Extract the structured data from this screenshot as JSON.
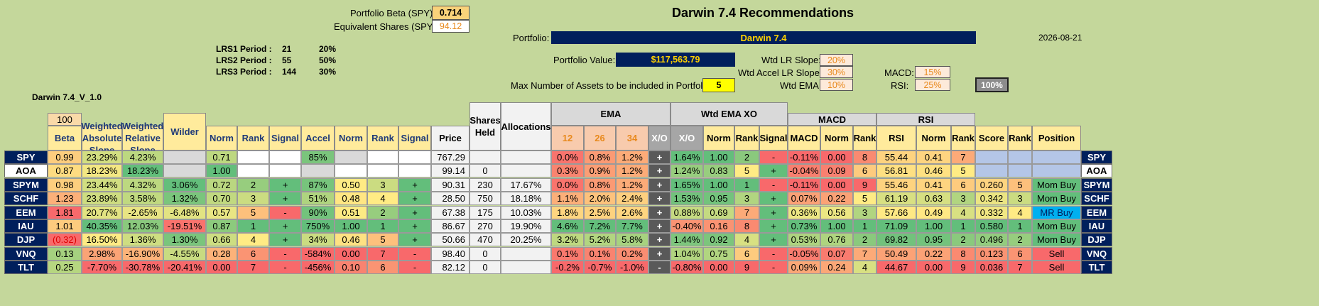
{
  "header": {
    "beta_label": "Portfolio Beta (SPY):",
    "beta_value": "0.714",
    "equiv_label": "Equivalent Shares (SPY):",
    "equiv_value": "94.12",
    "title": "Darwin 7.4 Recommendations",
    "portfolio_label": "Portfolio:",
    "portfolio_name": "Darwin 7.4",
    "date": "2026-08-21",
    "value_label": "Portfolio Value:",
    "value": "$117,563.79",
    "max_label": "Max Number of Assets to be included in Portfolio:",
    "max_value": "5",
    "version": "Darwin 7.4_V_1.0"
  },
  "periods": [
    {
      "label": "LRS1 Period :",
      "n": "21",
      "pct": "20%"
    },
    {
      "label": "LRS2 Period :",
      "n": "55",
      "pct": "50%"
    },
    {
      "label": "LRS3 Period :",
      "n": "144",
      "pct": "30%"
    }
  ],
  "weights": {
    "lr_label": "Wtd LR Slope:",
    "lr": "20%",
    "accel_label": "Wtd Accel LR Slope:",
    "accel": "30%",
    "ema_label": "Wtd EMA:",
    "ema": "10%",
    "macd_label": "MACD:",
    "macd": "15%",
    "rsi_label": "RSI:",
    "rsi": "25%",
    "total": "100%"
  },
  "groups": {
    "ema": "EMA",
    "wtd": "Wtd EMA XO",
    "macd": "MACD",
    "rsi": "RSI",
    "hundred": "100"
  },
  "columns": [
    "Beta",
    "Weighted Absolute Slope",
    "Weighted Relative Slope",
    "Wilder",
    "Norm",
    "Rank",
    "Signal",
    "Accel",
    "Norm",
    "Rank",
    "Signal",
    "Price",
    "Shares Held",
    "Allocations",
    "12",
    "26",
    "34",
    "X/O",
    "X/O",
    "Norm",
    "Rank",
    "Signal",
    "MACD",
    "Norm",
    "Rank",
    "RSI",
    "Norm",
    "Rank",
    "Score",
    "Rank",
    "Position"
  ],
  "colors": {
    "background": "#c4d79b",
    "navy": "#001f5c",
    "green": "#63be7b",
    "yellow": "#ffeb84",
    "red": "#f8696b"
  },
  "rows": [
    {
      "t": "SPY",
      "c": [
        "0.99",
        "23.29%",
        "4.23%",
        "",
        "0.71",
        "",
        "",
        "85%",
        "",
        "",
        "",
        "767.29",
        "",
        "",
        "0.0%",
        "0.8%",
        "1.2%",
        "+",
        "1.64%",
        "1.00",
        "2",
        "-",
        "-0.11%",
        "0.00",
        "8",
        "55.44",
        "0.41",
        "7",
        "",
        "",
        ""
      ]
    },
    {
      "t": "AOA",
      "c": [
        "0.87",
        "18.23%",
        "18.23%",
        "",
        "1.00",
        "",
        "",
        "",
        "",
        "",
        "",
        "99.14",
        "0",
        "",
        "0.3%",
        "0.9%",
        "1.2%",
        "+",
        "1.24%",
        "0.83",
        "5",
        "+",
        "-0.04%",
        "0.09",
        "6",
        "56.81",
        "0.46",
        "5",
        "",
        "",
        ""
      ]
    },
    {
      "t": "SPYM",
      "c": [
        "0.98",
        "23.44%",
        "4.32%",
        "3.06%",
        "0.72",
        "2",
        "+",
        "87%",
        "0.50",
        "3",
        "+",
        "90.31",
        "230",
        "17.67%",
        "0.0%",
        "0.8%",
        "1.2%",
        "+",
        "1.65%",
        "1.00",
        "1",
        "-",
        "-0.11%",
        "0.00",
        "9",
        "55.46",
        "0.41",
        "6",
        "0.260",
        "5",
        "Mom Buy"
      ]
    },
    {
      "t": "SCHF",
      "c": [
        "1.23",
        "23.89%",
        "3.58%",
        "1.32%",
        "0.70",
        "3",
        "+",
        "51%",
        "0.48",
        "4",
        "+",
        "28.50",
        "750",
        "18.18%",
        "1.1%",
        "2.0%",
        "2.4%",
        "+",
        "1.53%",
        "0.95",
        "3",
        "+",
        "0.07%",
        "0.22",
        "5",
        "61.19",
        "0.63",
        "3",
        "0.342",
        "3",
        "Mom Buy"
      ]
    },
    {
      "t": "EEM",
      "c": [
        "1.81",
        "20.77%",
        "-2.65%",
        "-6.48%",
        "0.57",
        "5",
        "-",
        "90%",
        "0.51",
        "2",
        "+",
        "67.38",
        "175",
        "10.03%",
        "1.8%",
        "2.5%",
        "2.6%",
        "+",
        "0.88%",
        "0.69",
        "7",
        "+",
        "0.36%",
        "0.56",
        "3",
        "57.66",
        "0.49",
        "4",
        "0.332",
        "4",
        "MR Buy"
      ]
    },
    {
      "t": "IAU",
      "c": [
        "1.01",
        "40.35%",
        "12.03%",
        "-19.51%",
        "0.87",
        "1",
        "+",
        "750%",
        "1.00",
        "1",
        "+",
        "86.67",
        "270",
        "19.90%",
        "4.6%",
        "7.2%",
        "7.7%",
        "+",
        "-0.40%",
        "0.16",
        "8",
        "+",
        "0.73%",
        "1.00",
        "1",
        "71.09",
        "1.00",
        "1",
        "0.580",
        "1",
        "Mom Buy"
      ]
    },
    {
      "t": "DJP",
      "c": [
        "(0.32)",
        "16.50%",
        "1.36%",
        "1.30%",
        "0.66",
        "4",
        "+",
        "34%",
        "0.46",
        "5",
        "+",
        "50.66",
        "470",
        "20.25%",
        "3.2%",
        "5.2%",
        "5.8%",
        "+",
        "1.44%",
        "0.92",
        "4",
        "+",
        "0.53%",
        "0.76",
        "2",
        "69.82",
        "0.95",
        "2",
        "0.496",
        "2",
        "Mom Buy"
      ]
    },
    {
      "t": "VNQ",
      "c": [
        "0.13",
        "2.98%",
        "-16.90%",
        "-4.55%",
        "0.28",
        "6",
        "-",
        "-584%",
        "0.00",
        "7",
        "-",
        "98.40",
        "0",
        "",
        "0.1%",
        "0.1%",
        "0.2%",
        "+",
        "1.04%",
        "0.75",
        "6",
        "-",
        "-0.05%",
        "0.07",
        "7",
        "50.49",
        "0.22",
        "8",
        "0.123",
        "6",
        "Sell"
      ]
    },
    {
      "t": "TLT",
      "c": [
        "0.25",
        "-7.70%",
        "-30.78%",
        "-20.41%",
        "0.00",
        "7",
        "-",
        "-456%",
        "0.10",
        "6",
        "-",
        "82.12",
        "0",
        "",
        "-0.2%",
        "-0.7%",
        "-1.0%",
        "-",
        "-0.80%",
        "0.00",
        "9",
        "-",
        "0.09%",
        "0.24",
        "4",
        "44.67",
        "0.00",
        "9",
        "0.036",
        "7",
        "Sell"
      ]
    }
  ]
}
